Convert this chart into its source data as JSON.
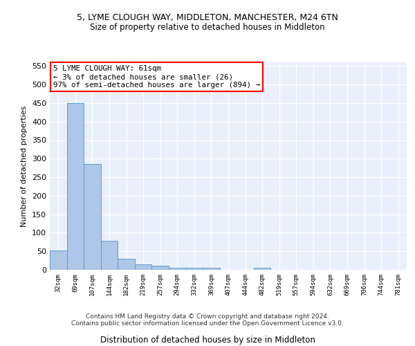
{
  "title1": "5, LYME CLOUGH WAY, MIDDLETON, MANCHESTER, M24 6TN",
  "title2": "Size of property relative to detached houses in Middleton",
  "xlabel": "Distribution of detached houses by size in Middleton",
  "ylabel": "Number of detached properties",
  "bar_labels": [
    "32sqm",
    "69sqm",
    "107sqm",
    "144sqm",
    "182sqm",
    "219sqm",
    "257sqm",
    "294sqm",
    "332sqm",
    "369sqm",
    "407sqm",
    "444sqm",
    "482sqm",
    "519sqm",
    "557sqm",
    "594sqm",
    "632sqm",
    "669sqm",
    "706sqm",
    "744sqm",
    "781sqm"
  ],
  "bar_values": [
    52,
    450,
    285,
    78,
    30,
    15,
    12,
    5,
    5,
    6,
    0,
    0,
    5,
    0,
    0,
    0,
    0,
    0,
    0,
    0,
    0
  ],
  "bar_color": "#aec6e8",
  "bar_edge_color": "#5a9fd4",
  "annotation_text": "5 LYME CLOUGH WAY: 61sqm\n← 3% of detached houses are smaller (26)\n97% of semi-detached houses are larger (894) →",
  "annotation_box_color": "white",
  "annotation_box_edge_color": "red",
  "ylim": [
    0,
    560
  ],
  "yticks": [
    0,
    50,
    100,
    150,
    200,
    250,
    300,
    350,
    400,
    450,
    500,
    550
  ],
  "background_color": "#eaf0fb",
  "footer1": "Contains HM Land Registry data © Crown copyright and database right 2024.",
  "footer2": "Contains public sector information licensed under the Open Government Licence v3.0."
}
